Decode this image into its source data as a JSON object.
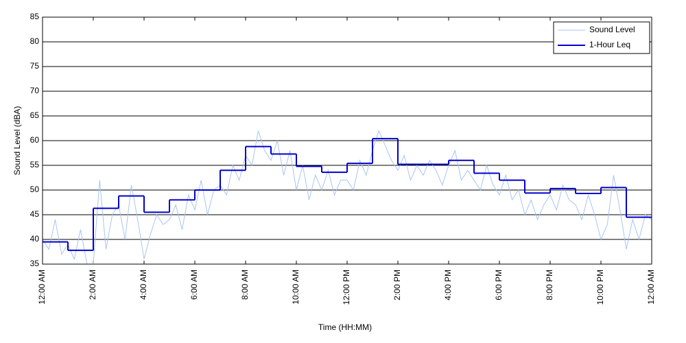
{
  "chart_data": {
    "type": "line",
    "xlabel": "Time (HH:MM)",
    "ylabel": "Sound Level (dBA)",
    "xlim": [
      0,
      24
    ],
    "ylim": [
      35,
      85
    ],
    "xticks": [
      {
        "value": 0,
        "label": "12:00 AM"
      },
      {
        "value": 2,
        "label": "2:00 AM"
      },
      {
        "value": 4,
        "label": "4:00 AM"
      },
      {
        "value": 6,
        "label": "6:00 AM"
      },
      {
        "value": 8,
        "label": "8:00 AM"
      },
      {
        "value": 10,
        "label": "10:00 AM"
      },
      {
        "value": 12,
        "label": "12:00 PM"
      },
      {
        "value": 14,
        "label": "2:00 PM"
      },
      {
        "value": 16,
        "label": "4:00 PM"
      },
      {
        "value": 18,
        "label": "6:00 PM"
      },
      {
        "value": 20,
        "label": "8:00 PM"
      },
      {
        "value": 22,
        "label": "10:00 PM"
      },
      {
        "value": 24,
        "label": "12:00 AM"
      }
    ],
    "yticks": [
      35,
      40,
      45,
      50,
      55,
      60,
      65,
      70,
      75,
      80,
      85
    ],
    "grid": true,
    "legend": "upper right",
    "series": [
      {
        "name": "Sound Level",
        "color": "#a8c4f4",
        "drawstyle": "default",
        "x": [
          0,
          0.25,
          0.5,
          0.75,
          1,
          1.25,
          1.5,
          1.75,
          2,
          2.25,
          2.5,
          2.75,
          3,
          3.25,
          3.5,
          3.75,
          4,
          4.25,
          4.5,
          4.75,
          5,
          5.25,
          5.5,
          5.75,
          6,
          6.25,
          6.5,
          6.75,
          7,
          7.25,
          7.5,
          7.75,
          8,
          8.25,
          8.5,
          8.75,
          9,
          9.25,
          9.5,
          9.75,
          10,
          10.25,
          10.5,
          10.75,
          11,
          11.25,
          11.5,
          11.75,
          12,
          12.25,
          12.5,
          12.75,
          13,
          13.25,
          13.5,
          13.75,
          14,
          14.25,
          14.5,
          14.75,
          15,
          15.25,
          15.5,
          15.75,
          16,
          16.25,
          16.5,
          16.75,
          17,
          17.25,
          17.5,
          17.75,
          18,
          18.25,
          18.5,
          18.75,
          19,
          19.25,
          19.5,
          19.75,
          20,
          20.25,
          20.5,
          20.75,
          21,
          21.25,
          21.5,
          21.75,
          22,
          22.25,
          22.5,
          22.75,
          23,
          23.25,
          23.5,
          23.75,
          24
        ],
        "values": [
          40,
          38,
          44,
          37,
          39,
          36,
          42,
          35,
          35,
          52,
          38,
          45,
          47,
          40,
          51,
          44,
          36,
          41,
          45,
          43,
          44,
          47,
          42,
          49,
          46,
          52,
          45,
          50,
          51,
          49,
          55,
          52,
          57,
          55,
          62,
          58,
          56,
          60,
          53,
          58,
          50,
          55,
          48,
          53,
          50,
          54,
          49,
          52,
          52,
          50,
          56,
          53,
          58,
          62,
          59,
          56,
          54,
          57,
          52,
          55,
          53,
          56,
          54,
          51,
          55,
          58,
          52,
          54,
          52,
          50,
          55,
          51,
          49,
          53,
          48,
          50,
          45,
          48,
          44,
          47,
          49,
          46,
          51,
          48,
          47,
          44,
          49,
          45,
          40,
          43,
          53,
          46,
          38,
          44,
          40,
          45,
          44
        ]
      },
      {
        "name": "1-Hour Leq",
        "color": "#0000cc",
        "drawstyle": "steps-post",
        "x": [
          0,
          1,
          2,
          3,
          4,
          5,
          6,
          7,
          8,
          9,
          10,
          11,
          12,
          13,
          14,
          15,
          16,
          17,
          18,
          19,
          20,
          21,
          22,
          23
        ],
        "values": [
          39.5,
          37.8,
          46.3,
          48.8,
          45.5,
          48,
          50,
          54,
          58.8,
          57.3,
          54.8,
          53.6,
          55.4,
          60.4,
          55.2,
          55.2,
          56,
          53.4,
          52,
          49.4,
          50.3,
          49.3,
          50.5,
          44.5
        ]
      }
    ]
  }
}
